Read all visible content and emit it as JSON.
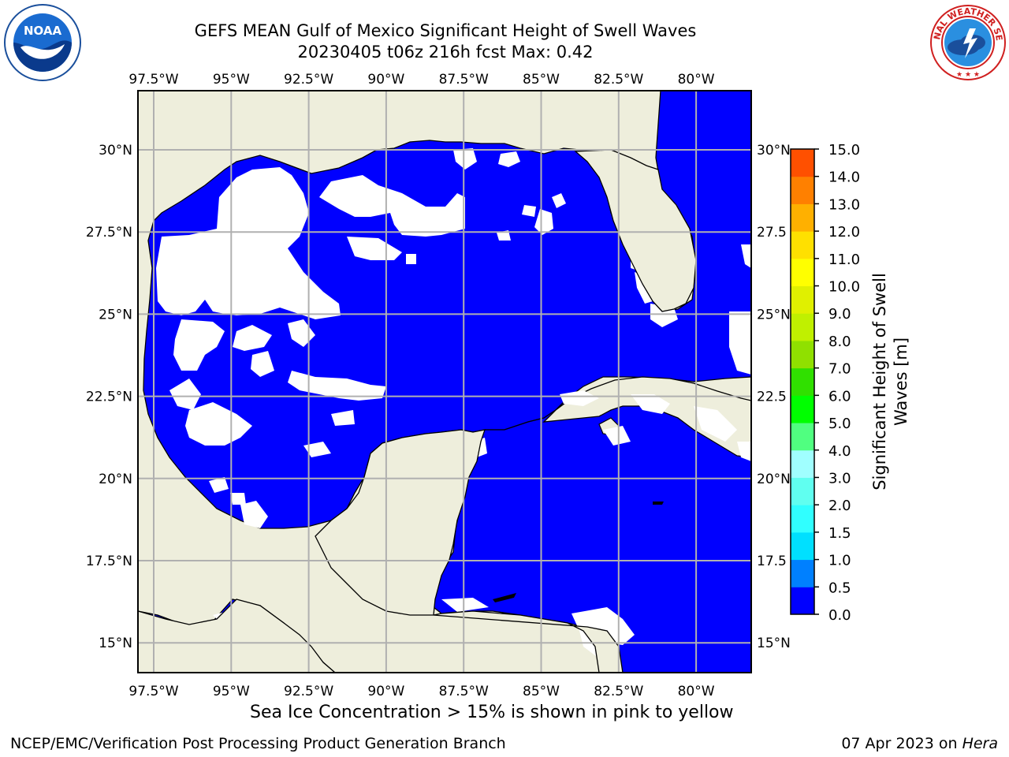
{
  "header": {
    "title_line1": "GEFS MEAN Gulf of Mexico Significant Height of Swell Waves",
    "title_line2": "20230405 t06z 216h fcst   Max: 0.42"
  },
  "logos": {
    "left": {
      "icon": "noaa-logo",
      "text": "NOAA",
      "ring_text": "NATIONAL OCEANIC AND ATMOSPHERIC ADMINISTRATION · U.S. DEPARTMENT OF COMMERCE"
    },
    "right": {
      "icon": "nws-logo",
      "ring_text": "NATIONAL WEATHER SERVICE"
    }
  },
  "map": {
    "lon_ticks": [
      "97.5°W",
      "95°W",
      "92.5°W",
      "90°W",
      "87.5°W",
      "85°W",
      "82.5°W",
      "80°W"
    ],
    "lat_ticks_left": [
      "30°N",
      "27.5°N",
      "25°N",
      "22.5°N",
      "20°N",
      "17.5°N",
      "15°N"
    ],
    "lat_ticks_right": [
      "30°N",
      "27.5",
      "25°N",
      "22.5",
      "20°N",
      "17.5",
      "15°N"
    ],
    "colors": {
      "land": "#eeeedc",
      "water": "#0000ff",
      "calm": "#ffffff",
      "grid": "#b0b0b0"
    }
  },
  "colorbar": {
    "label": "Significant Height of Swell Waves [m]",
    "label_line1": "Significant Height of Swell",
    "label_line2": "Waves [m]",
    "ticks": [
      "0.0",
      "0.5",
      "1.0",
      "1.5",
      "2.0",
      "3.0",
      "4.0",
      "5.0",
      "6.0",
      "7.0",
      "8.0",
      "9.0",
      "10.0",
      "11.0",
      "12.0",
      "13.0",
      "14.0",
      "15.0"
    ],
    "colors": [
      "#0000ff",
      "#0080ff",
      "#00e0ff",
      "#30ffff",
      "#60fff0",
      "#a0ffff",
      "#50ff80",
      "#00ff00",
      "#30e000",
      "#90e000",
      "#c0f000",
      "#e0f000",
      "#ffff00",
      "#ffe000",
      "#ffb000",
      "#ff8000",
      "#ff5000",
      "#ff2000",
      "#ff0000"
    ]
  },
  "footer": {
    "note": "Sea Ice Concentration > 15% is shown in pink to yellow",
    "left": "NCEP/EMC/Verification Post Processing Product Generation Branch",
    "right_date": "07 Apr 2023 on",
    "right_host": "Hera"
  }
}
